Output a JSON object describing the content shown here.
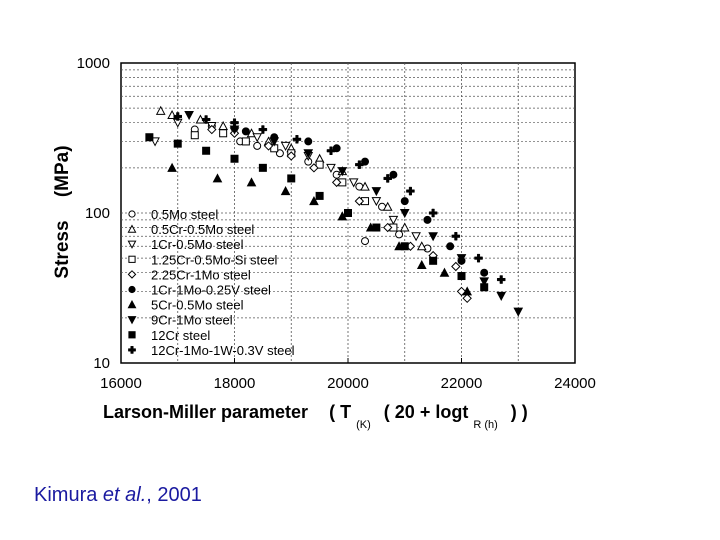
{
  "chart_data": {
    "type": "scatter",
    "xlabel": "Larson-Miller parameter",
    "xlabel_formula": {
      "open": "( T",
      "sub_k": "(K)",
      "mid": "( 20 + logt",
      "sub_r": "R (h)",
      "close": ") )"
    },
    "ylabel_main": "Stress",
    "ylabel_unit": "(MPa)",
    "xlim": [
      16000,
      24000
    ],
    "ylim": [
      10,
      1000
    ],
    "yscale": "log",
    "grid": true,
    "legend_position": "bottom-left",
    "x_ticks": [
      "16000",
      "18000",
      "20000",
      "22000",
      "24000"
    ],
    "y_ticks": [
      "10",
      "100",
      "1000"
    ],
    "series": [
      {
        "name": "0.5Mo steel",
        "marker": "circle-open",
        "points": [
          [
            17300,
            360
          ],
          [
            17600,
            380
          ],
          [
            18100,
            300
          ],
          [
            18400,
            280
          ],
          [
            18800,
            250
          ],
          [
            19300,
            220
          ],
          [
            19800,
            180
          ],
          [
            20200,
            150
          ],
          [
            20600,
            110
          ],
          [
            20300,
            65
          ],
          [
            20900,
            72
          ],
          [
            21400,
            58
          ]
        ]
      },
      {
        "name": "0.5Cr-0.5Mo steel",
        "marker": "triangle-up-open",
        "points": [
          [
            16700,
            480
          ],
          [
            16900,
            450
          ],
          [
            17400,
            420
          ],
          [
            17800,
            380
          ],
          [
            18300,
            340
          ],
          [
            18600,
            300
          ],
          [
            19000,
            270
          ],
          [
            19500,
            230
          ],
          [
            19900,
            190
          ],
          [
            20300,
            150
          ],
          [
            20700,
            110
          ],
          [
            21000,
            80
          ],
          [
            21300,
            60
          ]
        ]
      },
      {
        "name": "1Cr-0.5Mo steel",
        "marker": "triangle-down-open",
        "points": [
          [
            16600,
            300
          ],
          [
            17000,
            400
          ],
          [
            17600,
            380
          ],
          [
            18000,
            350
          ],
          [
            18400,
            320
          ],
          [
            18900,
            280
          ],
          [
            19300,
            240
          ],
          [
            19700,
            200
          ],
          [
            20100,
            160
          ],
          [
            20500,
            120
          ],
          [
            20800,
            90
          ],
          [
            21200,
            70
          ]
        ]
      },
      {
        "name": "1.25Cr-0.5Mo-Si steel",
        "marker": "square-open",
        "points": [
          [
            17300,
            330
          ],
          [
            17800,
            340
          ],
          [
            18200,
            300
          ],
          [
            18700,
            270
          ],
          [
            19000,
            250
          ],
          [
            19500,
            210
          ],
          [
            19900,
            160
          ],
          [
            20300,
            120
          ],
          [
            20800,
            80
          ]
        ]
      },
      {
        "name": "2.25Cr-1Mo steel",
        "marker": "diamond-open",
        "points": [
          [
            17600,
            360
          ],
          [
            18000,
            340
          ],
          [
            18600,
            280
          ],
          [
            19000,
            240
          ],
          [
            19400,
            200
          ],
          [
            19800,
            160
          ],
          [
            20200,
            120
          ],
          [
            20700,
            80
          ],
          [
            21100,
            60
          ],
          [
            21500,
            52
          ],
          [
            21900,
            44
          ],
          [
            22000,
            30
          ],
          [
            22100,
            27
          ]
        ]
      },
      {
        "name": "1Cr-1Mo-0.25V steel",
        "marker": "circle-filled",
        "points": [
          [
            18200,
            350
          ],
          [
            18700,
            320
          ],
          [
            19300,
            300
          ],
          [
            19800,
            270
          ],
          [
            20300,
            220
          ],
          [
            20800,
            180
          ],
          [
            21000,
            120
          ],
          [
            21400,
            90
          ],
          [
            21800,
            60
          ],
          [
            22000,
            48
          ],
          [
            22400,
            40
          ]
        ]
      },
      {
        "name": "5Cr-0.5Mo steel",
        "marker": "triangle-up-filled",
        "points": [
          [
            16900,
            200
          ],
          [
            17700,
            170
          ],
          [
            18300,
            160
          ],
          [
            18900,
            140
          ],
          [
            19400,
            120
          ],
          [
            19900,
            95
          ],
          [
            20400,
            80
          ],
          [
            20900,
            60
          ],
          [
            21300,
            45
          ],
          [
            21700,
            40
          ],
          [
            22100,
            30
          ]
        ]
      },
      {
        "name": "9Cr-1Mo steel",
        "marker": "triangle-down-filled",
        "points": [
          [
            17200,
            450
          ],
          [
            18000,
            360
          ],
          [
            18700,
            300
          ],
          [
            19300,
            250
          ],
          [
            19900,
            190
          ],
          [
            20500,
            140
          ],
          [
            21000,
            100
          ],
          [
            21500,
            70
          ],
          [
            22000,
            50
          ],
          [
            22400,
            35
          ],
          [
            22700,
            28
          ],
          [
            23000,
            22
          ]
        ]
      },
      {
        "name": "12Cr steel",
        "marker": "square-filled",
        "points": [
          [
            16500,
            320
          ],
          [
            17000,
            290
          ],
          [
            17500,
            260
          ],
          [
            18000,
            230
          ],
          [
            18500,
            200
          ],
          [
            19000,
            170
          ],
          [
            19500,
            130
          ],
          [
            20000,
            100
          ],
          [
            20500,
            80
          ],
          [
            21000,
            60
          ],
          [
            21500,
            48
          ],
          [
            22000,
            38
          ],
          [
            22400,
            32
          ]
        ]
      },
      {
        "name": "12Cr-1Mo-1W-0.3V steel",
        "marker": "plus-filled",
        "points": [
          [
            17000,
            440
          ],
          [
            17500,
            420
          ],
          [
            18000,
            400
          ],
          [
            18500,
            360
          ],
          [
            19100,
            310
          ],
          [
            19700,
            260
          ],
          [
            20200,
            210
          ],
          [
            20700,
            170
          ],
          [
            21100,
            140
          ],
          [
            21500,
            100
          ],
          [
            21900,
            70
          ],
          [
            22300,
            50
          ],
          [
            22700,
            36
          ]
        ]
      }
    ]
  },
  "citation": {
    "prefix": "Kimura ",
    "etal": "et al.",
    "suffix": ", 2001"
  }
}
